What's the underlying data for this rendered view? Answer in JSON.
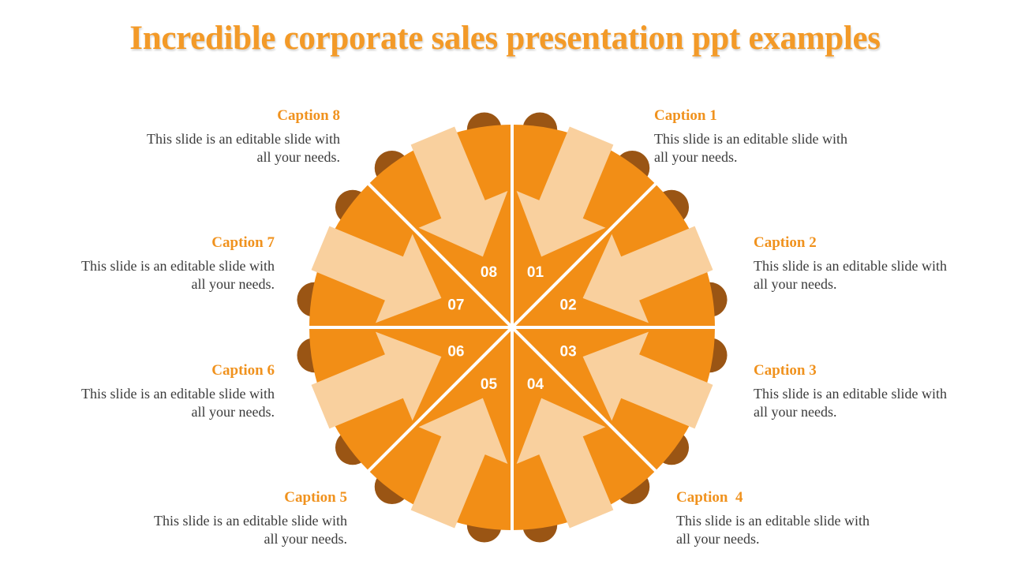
{
  "title": "Incredible corporate sales presentation ppt examples",
  "colors": {
    "segment": "#F28E16",
    "arrow": "#F9D09E",
    "tab": "#9A5514",
    "divider": "#ffffff",
    "caption_heading": "#F0921E",
    "body_text": "#3a3a3a"
  },
  "segments": [
    {
      "number": "01"
    },
    {
      "number": "02"
    },
    {
      "number": "03"
    },
    {
      "number": "04"
    },
    {
      "number": "05"
    },
    {
      "number": "06"
    },
    {
      "number": "07"
    },
    {
      "number": "08"
    }
  ],
  "captions": [
    {
      "heading": "Caption 1",
      "text": "This slide is an editable slide with\nall your needs."
    },
    {
      "heading": "Caption 2",
      "text": "This slide is an editable slide with\nall your needs."
    },
    {
      "heading": "Caption 3",
      "text": "This slide is an editable slide with\nall your needs."
    },
    {
      "heading": "Caption  4",
      "text": "This slide is an editable slide with\nall your needs."
    },
    {
      "heading": "Caption 5",
      "text": "This slide is an editable slide with\nall your needs."
    },
    {
      "heading": "Caption 6",
      "text": "This slide is an editable slide with\nall your needs."
    },
    {
      "heading": "Caption 7",
      "text": "This slide is an editable slide with\nall your needs."
    },
    {
      "heading": "Caption 8",
      "text": "This slide is an editable slide with\nall your needs."
    }
  ]
}
